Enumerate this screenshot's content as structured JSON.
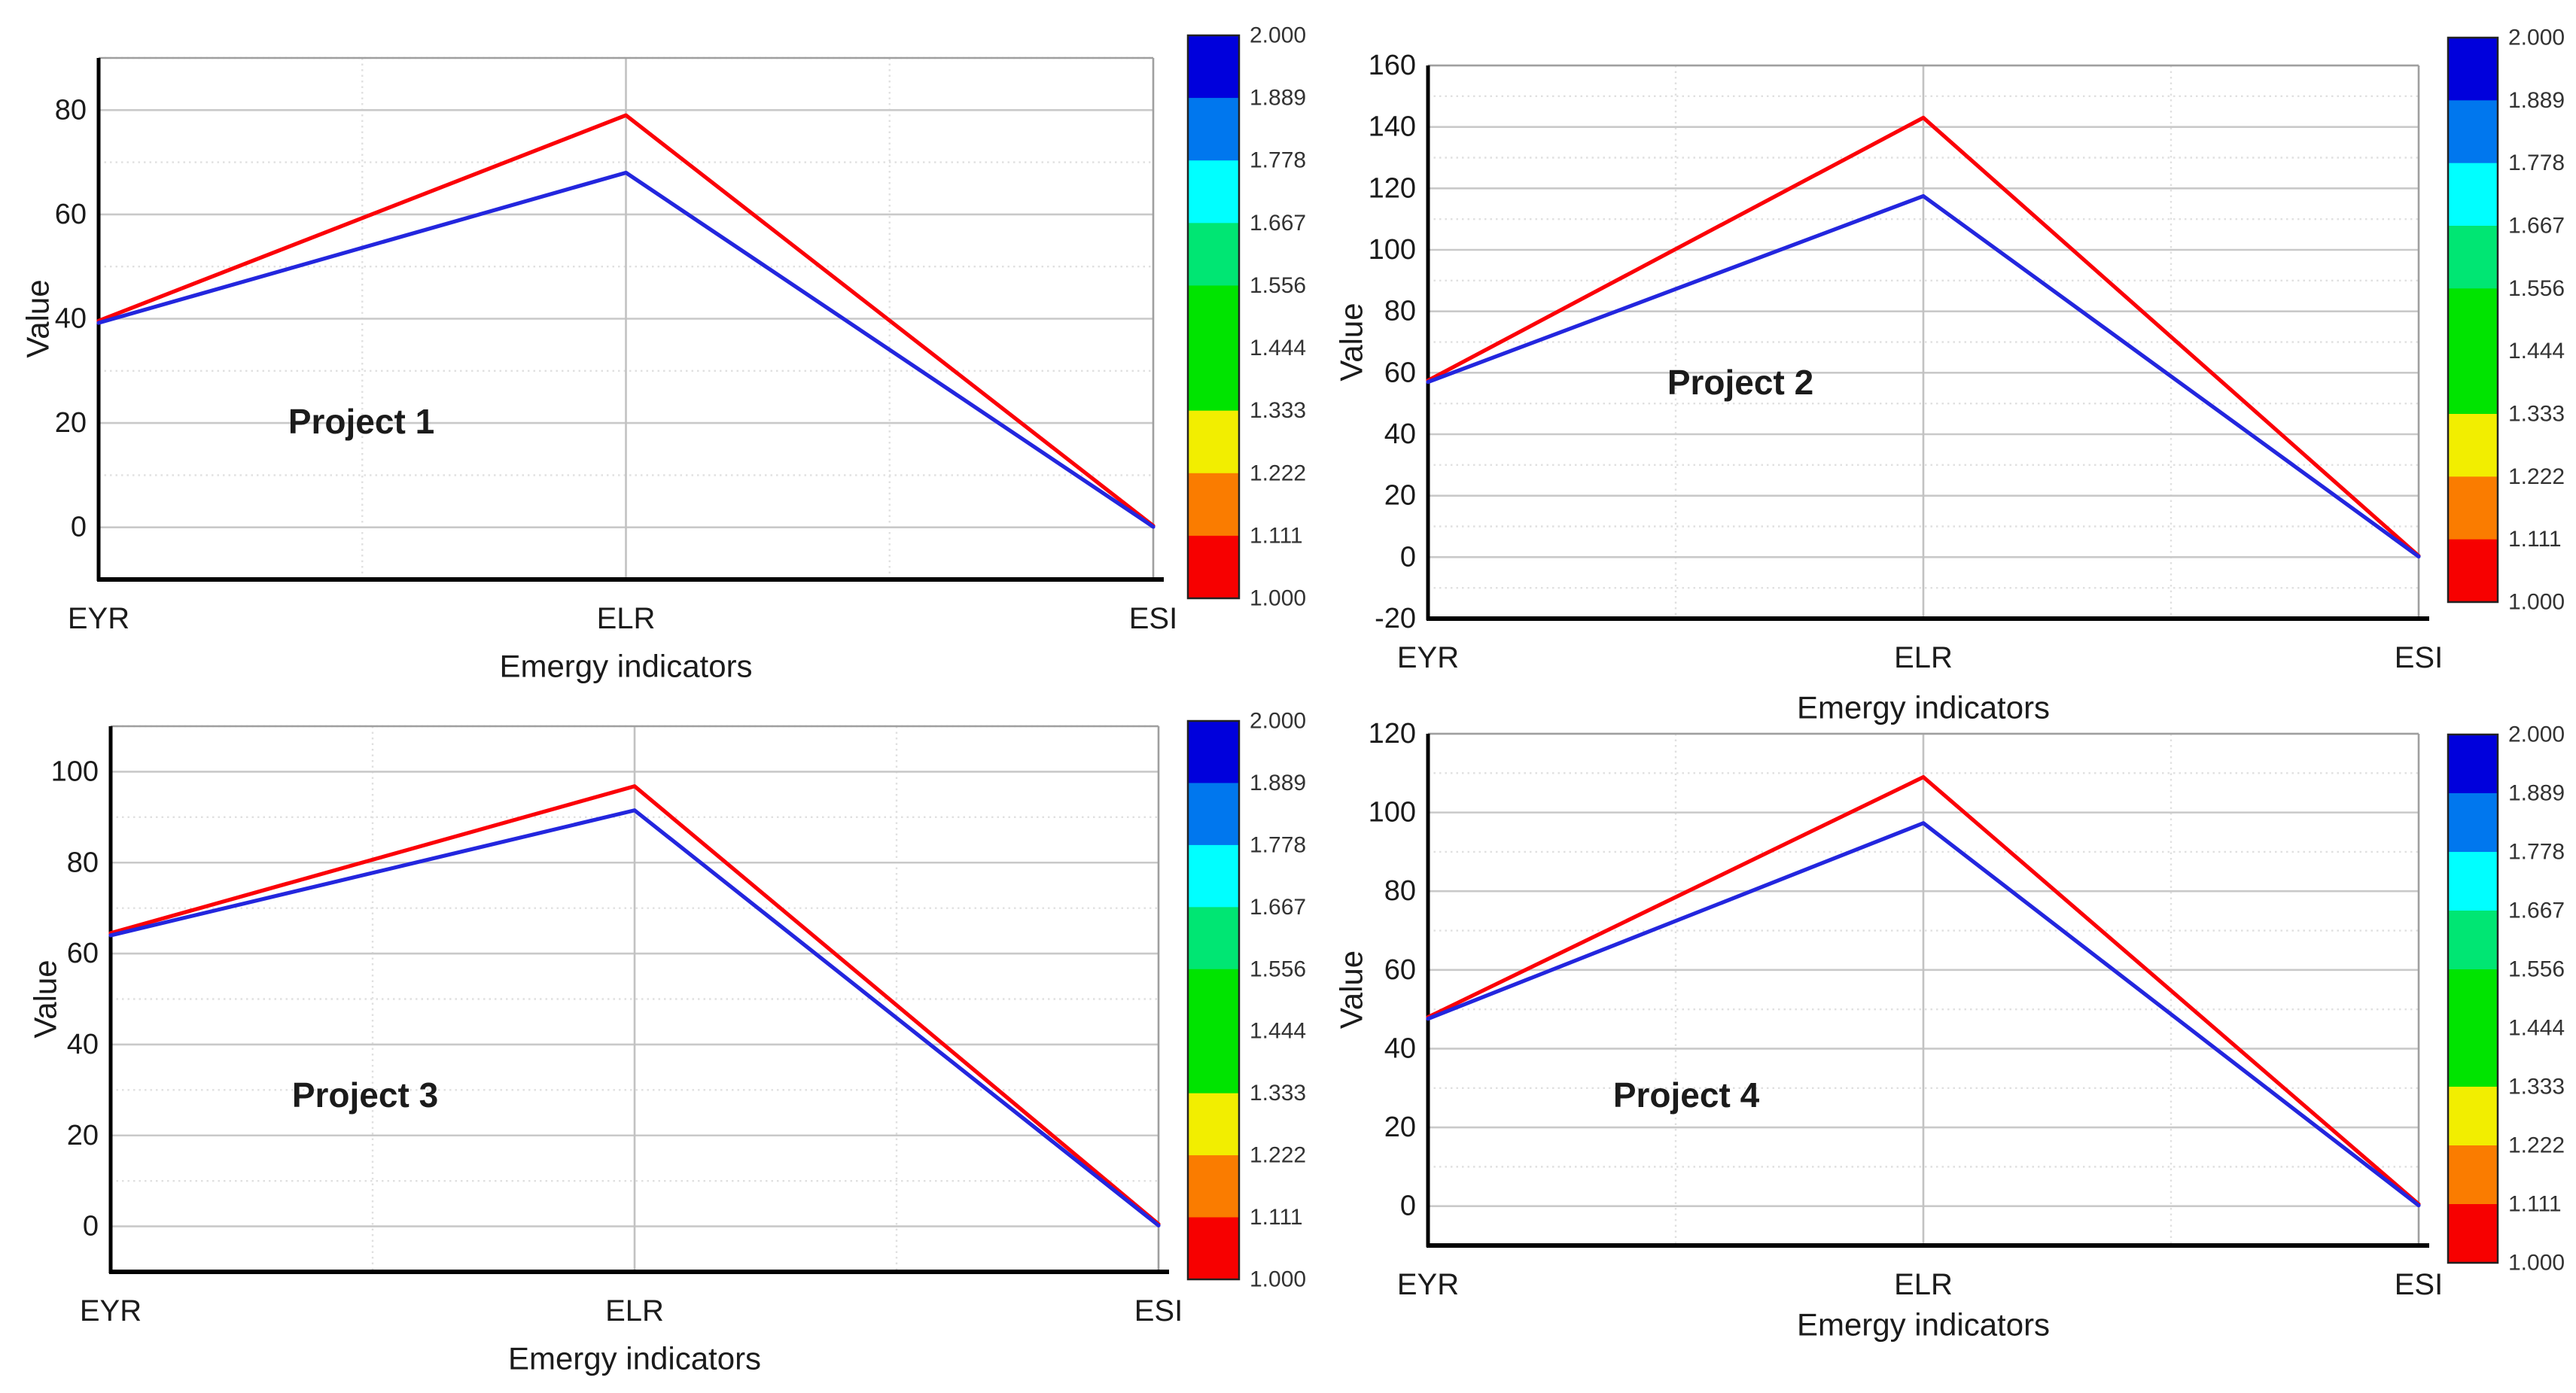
{
  "figure": {
    "background": "#ffffff",
    "description": "Four line charts of emergy indicators for four projects, each with a value colorbar legend from 2.000 (blue) to 1.000 (red)"
  },
  "colors": {
    "series_red": "#fb0007",
    "series_blue": "#2326de",
    "grid_major": "#c9c9c9",
    "grid_minor": "#e0e0e0",
    "grid_vertical_major": "#c2c2c2",
    "frame_dark": "#000000",
    "frame_light": "#9f9f9f",
    "text": "#1b1b1b"
  },
  "colorbar": {
    "tick_labels": [
      "2.000",
      "1.889",
      "1.778",
      "1.667",
      "1.556",
      "1.444",
      "1.333",
      "1.222",
      "1.111",
      "1.000"
    ],
    "bands": [
      {
        "from": "2.000",
        "to": "1.889",
        "color": "#0000dc",
        "span": 1
      },
      {
        "from": "1.889",
        "to": "1.778",
        "color": "#0077ee",
        "span": 1
      },
      {
        "from": "1.778",
        "to": "1.667",
        "color": "#00ffff",
        "span": 1
      },
      {
        "from": "1.667",
        "to": "1.556",
        "color": "#00e673",
        "span": 1
      },
      {
        "from": "1.556",
        "to": "1.333",
        "color": "#00e400",
        "span": 2
      },
      {
        "from": "1.333",
        "to": "1.222",
        "color": "#f2ee00",
        "span": 1
      },
      {
        "from": "1.222",
        "to": "1.111",
        "color": "#fa7c00",
        "span": 1
      },
      {
        "from": "1.111",
        "to": "1.000",
        "color": "#f70000",
        "span": 1
      }
    ]
  },
  "chart_data": [
    {
      "type": "line",
      "title": "Project 1",
      "xlabel": "Emergy indicators",
      "ylabel": "Value",
      "categories": [
        "EYR",
        "ELR",
        "ESI"
      ],
      "ylim": [
        -10,
        90
      ],
      "yticks": [
        0,
        20,
        40,
        60,
        80
      ],
      "grid": "major solid, minor dotted",
      "legend_position": "colorbar right",
      "series": [
        {
          "name": "red line",
          "color": "series_red",
          "values": [
            39.6,
            79.0,
            0.3
          ]
        },
        {
          "name": "blue line",
          "color": "series_blue",
          "values": [
            39.2,
            68.0,
            0.1
          ]
        }
      ]
    },
    {
      "type": "line",
      "title": "Project 2",
      "xlabel": "Emergy indicators",
      "ylabel": "Value",
      "categories": [
        "EYR",
        "ELR",
        "ESI"
      ],
      "ylim": [
        -20,
        160
      ],
      "yticks": [
        -20,
        0,
        20,
        40,
        60,
        80,
        100,
        120,
        140,
        160
      ],
      "grid": "major solid, minor dotted",
      "legend_position": "colorbar right",
      "series": [
        {
          "name": "red line",
          "color": "series_red",
          "values": [
            57.5,
            143.0,
            0.4
          ]
        },
        {
          "name": "blue line",
          "color": "series_blue",
          "values": [
            57.0,
            117.5,
            0.2
          ]
        }
      ]
    },
    {
      "type": "line",
      "title": "Project 3",
      "xlabel": "Emergy indicators",
      "ylabel": "Value",
      "categories": [
        "EYR",
        "ELR",
        "ESI"
      ],
      "ylim": [
        -10,
        110
      ],
      "yticks": [
        0,
        20,
        40,
        60,
        80,
        100
      ],
      "grid": "major solid, minor dotted",
      "legend_position": "colorbar right",
      "series": [
        {
          "name": "red line",
          "color": "series_red",
          "values": [
            64.5,
            96.8,
            0.5
          ]
        },
        {
          "name": "blue line",
          "color": "series_blue",
          "values": [
            64.0,
            91.5,
            0.2
          ]
        }
      ]
    },
    {
      "type": "line",
      "title": "Project 4",
      "xlabel": "Emergy indicators",
      "ylabel": "Value",
      "categories": [
        "EYR",
        "ELR",
        "ESI"
      ],
      "ylim": [
        -10,
        120
      ],
      "yticks": [
        0,
        20,
        40,
        60,
        80,
        100,
        120
      ],
      "grid": "major solid, minor dotted",
      "legend_position": "colorbar right",
      "series": [
        {
          "name": "red line",
          "color": "series_red",
          "values": [
            48.0,
            109.0,
            0.5
          ]
        },
        {
          "name": "blue line",
          "color": "series_blue",
          "values": [
            47.6,
            97.3,
            0.2
          ]
        }
      ]
    }
  ]
}
